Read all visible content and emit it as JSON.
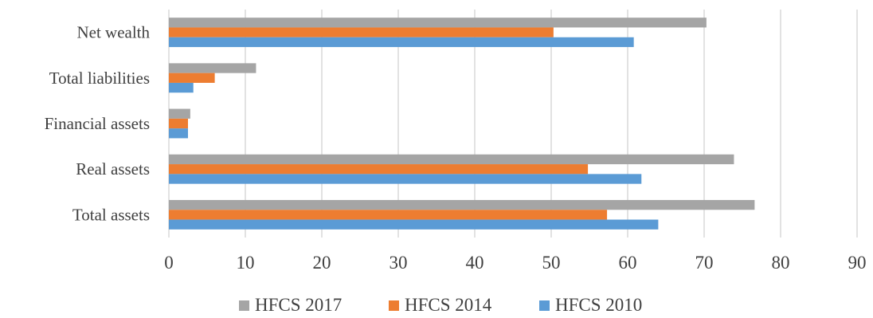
{
  "chart_data": {
    "type": "bar",
    "orientation": "horizontal",
    "categories": [
      "Net wealth",
      "Total liabilities",
      "Financial assets",
      "Real assets",
      "Total assets"
    ],
    "series": [
      {
        "name": "HFCS 2017",
        "color": "#a5a5a5",
        "values": [
          70.3,
          11.4,
          2.8,
          73.9,
          76.6
        ]
      },
      {
        "name": "HFCS 2014",
        "color": "#ed7d31",
        "values": [
          50.3,
          6.0,
          2.5,
          54.8,
          57.3
        ]
      },
      {
        "name": "HFCS 2010",
        "color": "#5b9bd5",
        "values": [
          60.8,
          3.2,
          2.5,
          61.8,
          64.0
        ]
      }
    ],
    "xlim": [
      0,
      90
    ],
    "xticks": [
      "0",
      "10",
      "20",
      "30",
      "40",
      "50",
      "60",
      "70",
      "80",
      "90"
    ],
    "grid": "vertical",
    "legend": "bottom",
    "title": "",
    "xlabel": "",
    "ylabel": ""
  }
}
